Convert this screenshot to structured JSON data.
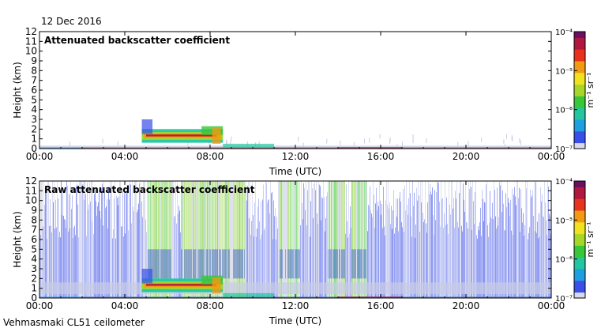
{
  "date": "12 Dec 2016",
  "footer": "Vehmasmaki CL51 ceilometer",
  "colors": {
    "cmap": [
      "#d8d8ee",
      "#3a4ee8",
      "#1f9ee0",
      "#22c6a0",
      "#38c63a",
      "#a6d628",
      "#f2e21e",
      "#f29a12",
      "#e8321e",
      "#b01840",
      "#6a1060"
    ],
    "noise": "#c8cce6"
  },
  "chart_data": [
    {
      "type": "heatmap",
      "title": "Attenuated backscatter coefficient",
      "xlabel": "Time (UTC)",
      "ylabel": "Height (km)",
      "xlim": [
        0,
        24
      ],
      "ylim": [
        0,
        12
      ],
      "xticks": [
        "00:00",
        "04:00",
        "08:00",
        "12:00",
        "16:00",
        "20:00",
        "00:00"
      ],
      "yticks": [
        "0",
        "1",
        "2",
        "3",
        "4",
        "5",
        "6",
        "7",
        "8",
        "9",
        "10",
        "11",
        "12"
      ],
      "colorbar": {
        "label": "m⁻¹ sr⁻¹",
        "scale": "log",
        "ticks": [
          "10⁻⁷",
          "10⁻⁶",
          "10⁻⁵",
          "10⁻⁴"
        ]
      }
    },
    {
      "type": "heatmap",
      "title": "Raw attenuated backscatter coefficient",
      "xlabel": "Time (UTC)",
      "ylabel": "Height (km)",
      "xlim": [
        0,
        24
      ],
      "ylim": [
        0,
        12
      ],
      "xticks": [
        "00:00",
        "04:00",
        "08:00",
        "12:00",
        "16:00",
        "20:00",
        "00:00"
      ],
      "yticks": [
        "0",
        "1",
        "2",
        "3",
        "4",
        "5",
        "6",
        "7",
        "8",
        "9",
        "10",
        "11",
        "12"
      ],
      "colorbar": {
        "label": "m⁻¹ sr⁻¹",
        "scale": "log",
        "ticks": [
          "10⁻⁷",
          "10⁻⁶",
          "10⁻⁵",
          "10⁻⁴"
        ]
      }
    }
  ]
}
